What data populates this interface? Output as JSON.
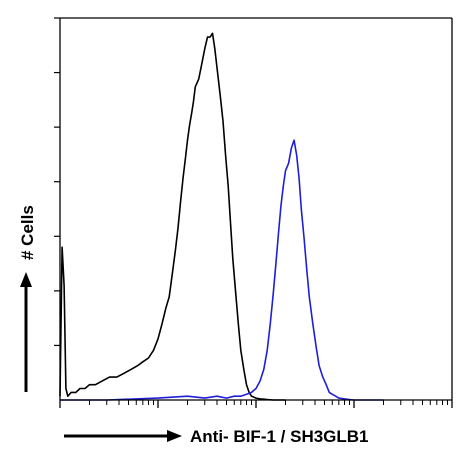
{
  "chart_data": {
    "type": "line",
    "title": "",
    "xlabel": "Anti- BIF-1 / SH3GLB1",
    "ylabel": "# Cells",
    "x_scale": "log",
    "xlim": [
      1,
      10000
    ],
    "ylim": [
      0,
      100
    ],
    "grid": false,
    "legend": "none",
    "series": [
      {
        "color": "#000000",
        "x": [
          1,
          1.05,
          1.1,
          1.15,
          1.2,
          1.3,
          1.45,
          1.6,
          1.8,
          2,
          2.3,
          2.7,
          3.2,
          3.8,
          4.5,
          5.3,
          6.2,
          7,
          8,
          9,
          10,
          11,
          12,
          13,
          14,
          15,
          16,
          17,
          18,
          19,
          20,
          21,
          22,
          23,
          24,
          26,
          28,
          30,
          32,
          34,
          36,
          38,
          40,
          43,
          46,
          49,
          52,
          55,
          58,
          62,
          66,
          70,
          75,
          80,
          85,
          90,
          100,
          110,
          120,
          130,
          150,
          170,
          200
        ],
        "y": [
          1,
          40,
          30,
          3,
          1,
          2,
          2,
          3,
          3,
          4,
          4,
          5,
          6,
          6,
          7,
          8,
          9,
          10,
          11,
          13,
          16,
          20,
          24,
          27,
          33,
          39,
          45,
          52,
          58,
          63,
          68,
          72,
          75,
          78,
          82,
          84,
          88,
          92,
          95,
          95,
          96,
          92,
          87,
          80,
          73,
          64,
          56,
          46,
          37,
          28,
          20,
          13,
          8,
          4,
          2,
          1,
          0.5,
          0.3,
          0.2,
          0.1,
          0,
          0,
          0
        ]
      },
      {
        "color": "#1f1fd6",
        "x": [
          1,
          3,
          10,
          20,
          30,
          40,
          50,
          60,
          70,
          80,
          90,
          100,
          110,
          120,
          130,
          140,
          150,
          160,
          170,
          180,
          190,
          200,
          215,
          230,
          245,
          260,
          275,
          290,
          310,
          330,
          350,
          380,
          410,
          440,
          480,
          520,
          560,
          600,
          650,
          700,
          800,
          900,
          1000,
          1200,
          2000
        ],
        "y": [
          0,
          0,
          0.5,
          1,
          0.5,
          1,
          0.5,
          1,
          1,
          1.5,
          2,
          3,
          5,
          8,
          13,
          20,
          28,
          36,
          44,
          51,
          56,
          60,
          62,
          66,
          68,
          64,
          58,
          50,
          42,
          34,
          27,
          20,
          14,
          9,
          6,
          4,
          2,
          1.5,
          1,
          0.5,
          0.3,
          0.1,
          0,
          0,
          0
        ]
      }
    ]
  }
}
